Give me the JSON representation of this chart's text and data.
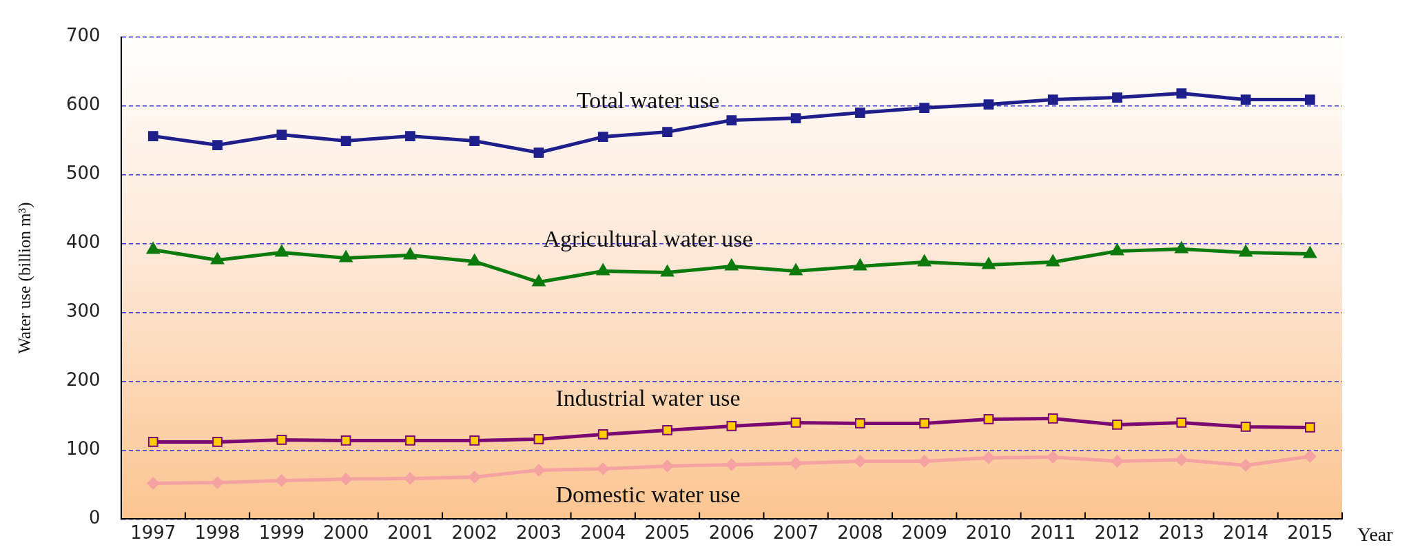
{
  "chart_data": {
    "type": "line",
    "xlabel": "Year",
    "ylabel": "Water use (billion m³)",
    "categories": [
      "1997",
      "1998",
      "1999",
      "2000",
      "2001",
      "2002",
      "2003",
      "2004",
      "2005",
      "2006",
      "2007",
      "2008",
      "2009",
      "2010",
      "2011",
      "2012",
      "2013",
      "2014",
      "2015"
    ],
    "ylim": [
      0,
      700
    ],
    "yticks": [
      0,
      100,
      200,
      300,
      400,
      500,
      600,
      700
    ],
    "grid": "y",
    "line_style": "solid",
    "series": [
      {
        "name": "Total water use",
        "color": "#1f1f8c",
        "marker": "square",
        "values": [
          556,
          543,
          558,
          549,
          556,
          549,
          532,
          555,
          562,
          579,
          582,
          590,
          597,
          602,
          609,
          612,
          618,
          609,
          609
        ]
      },
      {
        "name": "Agricultural water use",
        "color": "#0d7a0d",
        "marker": "triangle",
        "values": [
          391,
          376,
          387,
          379,
          383,
          374,
          344,
          360,
          358,
          367,
          360,
          367,
          373,
          369,
          373,
          389,
          392,
          387,
          385
        ]
      },
      {
        "name": "Industrial water use",
        "color": "#7a0a72",
        "marker": "square",
        "colors": [
          "#ffcc00",
          "#ffcc00",
          "#ffcc00",
          "#ffcc00",
          "#ffcc00",
          "#ffcc00",
          "#ffcc00",
          "#ffcc00",
          "#ffcc00",
          "#ffcc00",
          "#ffcc00",
          "#ffcc00",
          "#ffcc00",
          "#ffcc00",
          "#ffcc00",
          "#ffcc00",
          "#ffcc00",
          "#ffcc00",
          "#ffcc00"
        ],
        "values": [
          112,
          112,
          115,
          114,
          114,
          114,
          116,
          123,
          129,
          135,
          140,
          139,
          139,
          145,
          146,
          137,
          140,
          134,
          133
        ]
      },
      {
        "name": "Domestic water use",
        "color": "#f4a2a2",
        "marker": "diamond",
        "values": [
          52,
          53,
          56,
          58,
          59,
          61,
          71,
          73,
          77,
          79,
          81,
          84,
          84,
          89,
          90,
          84,
          86,
          78,
          91
        ]
      }
    ]
  }
}
